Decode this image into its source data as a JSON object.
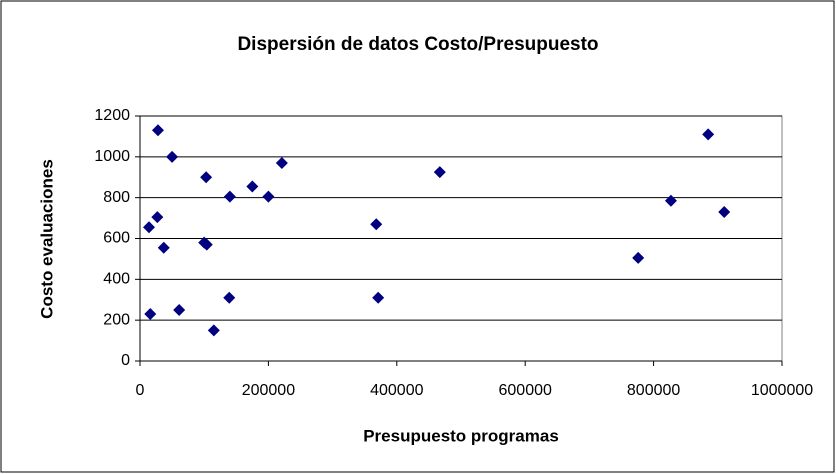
{
  "chart_data": {
    "type": "scatter",
    "title": "Dispersión de datos Costo/Presupuesto",
    "x_label": "Presupuesto programas",
    "y_label": "Costo evaluaciones",
    "series": [
      {
        "name": "Costo evaluaciones",
        "color": "#000080",
        "x": [
          28000,
          50000,
          103000,
          221000,
          175000,
          140000,
          200000,
          27000,
          14000,
          37000,
          100000,
          104000,
          368000,
          467000,
          16000,
          61000,
          139000,
          115000,
          371000,
          776000,
          827000,
          885000,
          910000
        ],
        "values": [
          1130,
          1000,
          900,
          970,
          855,
          805,
          805,
          705,
          655,
          555,
          580,
          570,
          670,
          925,
          230,
          250,
          310,
          150,
          310,
          505,
          785,
          1110,
          730
        ]
      }
    ],
    "xlim": [
      0,
      1000000
    ],
    "xticks": [
      0,
      200000,
      400000,
      600000,
      800000,
      1000000
    ],
    "ylim": [
      0,
      1200
    ],
    "yticks": [
      0,
      200,
      400,
      600,
      800,
      1000,
      1200
    ],
    "grid": true
  }
}
